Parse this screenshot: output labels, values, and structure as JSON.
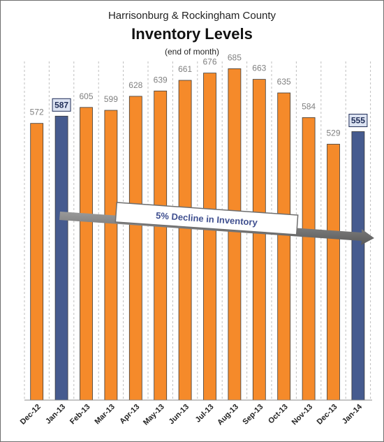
{
  "chart_data": {
    "type": "bar",
    "title": "Inventory Levels",
    "supertitle": "Harrisonburg & Rockingham County",
    "subtitle": "(end of month)",
    "categories": [
      "Dec-12",
      "Jan-13",
      "Feb-13",
      "Mar-13",
      "Apr-13",
      "May-13",
      "Jun-13",
      "Jul-13",
      "Aug-13",
      "Sep-13",
      "Oct-13",
      "Nov-13",
      "Dec-13",
      "Jan-14"
    ],
    "values": [
      572,
      587,
      605,
      599,
      628,
      639,
      661,
      676,
      685,
      663,
      635,
      584,
      529,
      555
    ],
    "highlighted": [
      "Jan-13",
      "Jan-14"
    ],
    "ylim": [
      0,
      700
    ],
    "annotation": "5% Decline in Inventory",
    "colors": {
      "bar": "#f58a2a",
      "highlight": "#465b8f",
      "grid": "#bfbfbf"
    },
    "grid": "vertical-dashed",
    "legend": "none"
  }
}
